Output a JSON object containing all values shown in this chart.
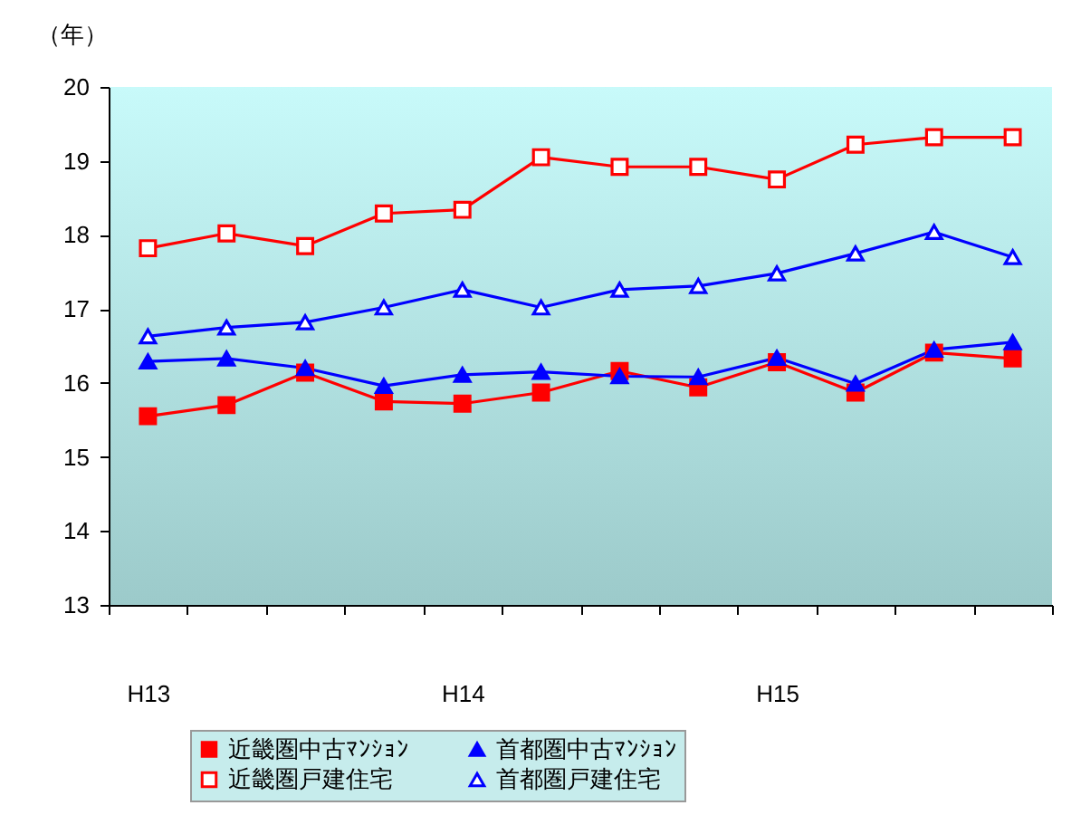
{
  "chart_data": {
    "type": "line",
    "ylabel": "（年）",
    "categories": [
      "H13",
      null,
      null,
      null,
      "H14",
      null,
      null,
      null,
      "H15",
      null,
      null,
      null
    ],
    "ylim": [
      13,
      20
    ],
    "yticks": [
      13,
      14,
      15,
      16,
      17,
      18,
      19,
      20
    ],
    "grid": false,
    "legend": "bottom",
    "series": [
      {
        "name": "近畿圏中古ﾏﾝｼｮﾝ",
        "color": "#ff0000",
        "marker": "square",
        "values": [
          15.55,
          15.7,
          16.14,
          15.75,
          15.72,
          15.87,
          16.16,
          15.94,
          16.28,
          15.87,
          16.41,
          16.33
        ]
      },
      {
        "name": "首都圏中古ﾏﾝｼｮﾝ",
        "color": "#0000ff",
        "marker": "triangle",
        "values": [
          16.29,
          16.33,
          16.2,
          15.96,
          16.11,
          16.15,
          16.09,
          16.08,
          16.34,
          15.99,
          16.45,
          16.55
        ]
      },
      {
        "name": "近畿圏戸建住宅",
        "color": "#ff0000",
        "marker": "square-open",
        "values": [
          17.82,
          18.02,
          17.85,
          18.29,
          18.34,
          19.05,
          18.92,
          18.92,
          18.75,
          19.22,
          19.32,
          19.32
        ]
      },
      {
        "name": "首都圏戸建住宅",
        "color": "#0000ff",
        "marker": "triangle-open",
        "values": [
          16.63,
          16.75,
          16.82,
          17.02,
          17.26,
          17.02,
          17.26,
          17.31,
          17.48,
          17.75,
          18.04,
          17.7
        ]
      }
    ]
  }
}
